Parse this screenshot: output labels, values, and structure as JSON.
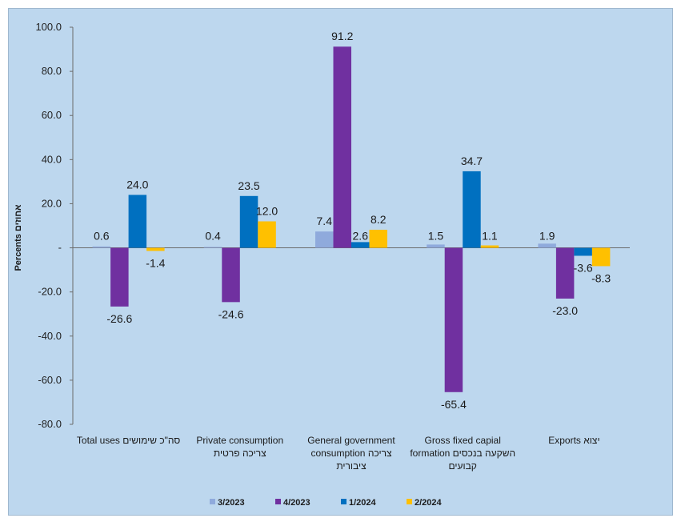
{
  "chart_data": {
    "type": "bar",
    "ylabel": "Percents אחוזים",
    "ylim": [
      -80,
      100
    ],
    "yticks": [
      "100.0",
      "80.0",
      "60.0",
      "40.0",
      "20.0",
      "-",
      "-20.0",
      "-40.0",
      "-60.0",
      "-80.0"
    ],
    "categories": [
      {
        "lines": [
          "Total uses  סה\"כ שימושים"
        ]
      },
      {
        "lines": [
          "Private consumption",
          "צריכה פרטית"
        ]
      },
      {
        "lines": [
          "General government",
          "consumption   צריכה",
          "ציבורית"
        ]
      },
      {
        "lines": [
          "Gross fixed capial",
          "formation  השקעה בנכסים",
          "קבועים"
        ]
      },
      {
        "lines": [
          "Exports  יצוא"
        ]
      }
    ],
    "series": [
      {
        "name": "3/2023",
        "color": "#8faadc",
        "values": [
          0.6,
          0.4,
          7.4,
          1.5,
          1.9
        ],
        "labels": [
          "0.6",
          "0.4",
          "7.4",
          "1.5",
          "1.9"
        ]
      },
      {
        "name": "4/2023",
        "color": "#7030a0",
        "values": [
          -26.6,
          -24.6,
          91.2,
          -65.4,
          -23.0
        ],
        "labels": [
          "-26.6",
          "-24.6",
          "91.2",
          "-65.4",
          "-23.0"
        ]
      },
      {
        "name": "1/2024",
        "color": "#0070c0",
        "values": [
          24.0,
          23.5,
          2.6,
          34.7,
          -3.6
        ],
        "labels": [
          "24.0",
          "23.5",
          "2.6",
          "34.7",
          "-3.6"
        ]
      },
      {
        "name": "2/2024",
        "color": "#ffc000",
        "values": [
          -1.4,
          12.0,
          8.2,
          1.1,
          -8.3
        ],
        "labels": [
          "-1.4",
          "12.0",
          "8.2",
          "1.1",
          "-8.3"
        ]
      }
    ],
    "legend_position": "bottom"
  }
}
